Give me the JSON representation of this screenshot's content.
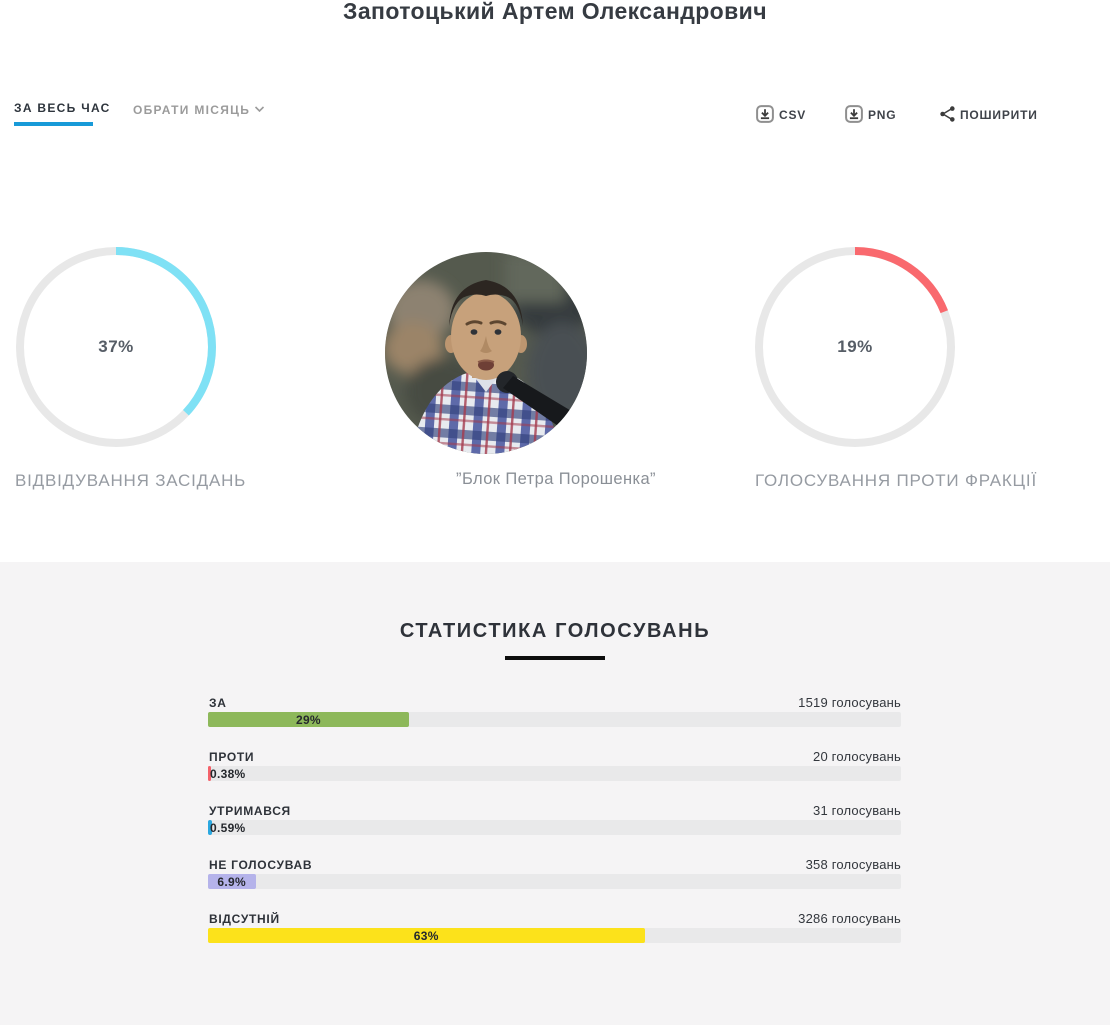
{
  "page": {
    "title": "Запотоцький Артем Олександрович"
  },
  "toolbar": {
    "tab_all_time": "ЗА ВЕСЬ ЧАС",
    "tab_pick_month": "ОБРАТИ МІСЯЦЬ",
    "csv_label": "CSV",
    "png_label": "PNG",
    "share_label": "ПОШИРИТИ"
  },
  "summary": {
    "attendance": {
      "value": 37,
      "percent_label": "37%",
      "label": "ВІДВІДУВАННЯ ЗАСІДАНЬ",
      "arc_color": "#7fe1f5"
    },
    "faction": {
      "caption": "”Блок Петра Порошенка”"
    },
    "against_faction": {
      "value": 19,
      "percent_label": "19%",
      "label": "ГОЛОСУВАННЯ ПРОТИ ФРАКЦІЇ",
      "arc_color": "#f9696e"
    }
  },
  "stats": {
    "heading": "СТАТИСТИКА ГОЛОСУВАНЬ",
    "rows": [
      {
        "label": "ЗА",
        "count": "1519 голосувань",
        "percent_label": "29%",
        "percent": 29,
        "color": "#8db85a"
      },
      {
        "label": "ПРОТИ",
        "count": "20 голосувань",
        "percent_label": "0.38%",
        "percent": 0.38,
        "color": "#f4626a"
      },
      {
        "label": "УТРИМАВСЯ",
        "count": "31 голосувань",
        "percent_label": "0.59%",
        "percent": 0.59,
        "color": "#2ba8e0"
      },
      {
        "label": "НЕ ГОЛОСУВАВ",
        "count": "358 голосувань",
        "percent_label": "6.9%",
        "percent": 6.9,
        "color": "#b5b3ea"
      },
      {
        "label": "ВІДСУТНІЙ",
        "count": "3286 голосувань",
        "percent_label": "63%",
        "percent": 63,
        "color": "#fce21b"
      }
    ]
  },
  "colors": {
    "accent_blue": "#189ad8",
    "donut_track": "#e8e8e8",
    "attendance_arc": "#7fe1f5",
    "against_arc": "#f9696e",
    "section_bg": "#f5f4f5",
    "bar_track": "#e9e9ea"
  },
  "chart_data": [
    {
      "type": "pie",
      "style": "donut",
      "title": "ВІДВІДУВАННЯ ЗАСІДАНЬ",
      "labels": [
        "відвідування",
        "решта"
      ],
      "values": [
        37,
        63
      ],
      "unit": "%",
      "center_label": "37%",
      "colors": [
        "#7fe1f5",
        "#e8e8e8"
      ]
    },
    {
      "type": "pie",
      "style": "donut",
      "title": "ГОЛОСУВАННЯ ПРОТИ ФРАКЦІЇ",
      "labels": [
        "проти фракції",
        "решта"
      ],
      "values": [
        19,
        81
      ],
      "unit": "%",
      "center_label": "19%",
      "colors": [
        "#f9696e",
        "#e8e8e8"
      ]
    },
    {
      "type": "bar",
      "title": "СТАТИСТИКА ГОЛОСУВАНЬ",
      "orientation": "horizontal",
      "categories": [
        "ЗА",
        "ПРОТИ",
        "УТРИМАВСЯ",
        "НЕ ГОЛОСУВАВ",
        "ВІДСУТНІЙ"
      ],
      "series": [
        {
          "name": "відсоток",
          "values": [
            29,
            0.38,
            0.59,
            6.9,
            63
          ]
        },
        {
          "name": "голосувань",
          "values": [
            1519,
            20,
            31,
            358,
            3286
          ]
        }
      ],
      "xlim": [
        0,
        100
      ],
      "colors": [
        "#8db85a",
        "#f4626a",
        "#2ba8e0",
        "#b5b3ea",
        "#fce21b"
      ]
    }
  ]
}
